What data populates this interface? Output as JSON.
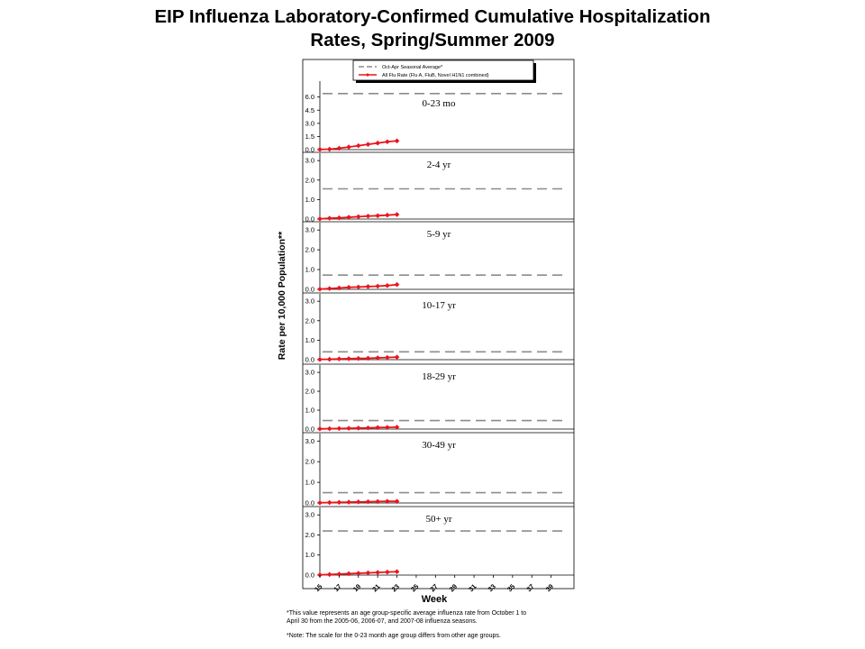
{
  "title_line1": "EIP Influenza Laboratory-Confirmed Cumulative Hospitalization",
  "title_line2": "Rates, Spring/Summer 2009",
  "footnote1_line1": "*This value represents an age group-specific average influenza rate from October 1 to",
  "footnote1_line2": "April 30 from the 2005-06, 2006-07, and 2007-08 influenza seasons.",
  "footnote2": "*Note: The scale for the 0-23 month age group differs from other age groups.",
  "colors": {
    "flu_rate": "#e8161d",
    "seasonal_avg": "#8c8c8c",
    "axis": "#000000"
  },
  "chart_data": {
    "type": "line",
    "xlabel": "Week",
    "ylabel": "Rate per 10,000 Population**",
    "x_ticks": [
      15,
      17,
      19,
      21,
      23,
      25,
      27,
      29,
      31,
      33,
      35,
      37,
      39
    ],
    "xlim": [
      15,
      41
    ],
    "legend": {
      "placement": "top",
      "entries": [
        "Oct-Apr Seasonal Average*",
        "All Flu Rate (Flu A, FluB, Novel H1N1 combined)"
      ]
    },
    "weeks": [
      15,
      16,
      17,
      18,
      19,
      20,
      21,
      22,
      23
    ],
    "panels": [
      {
        "label": "0-23 mo",
        "ylim": [
          0,
          7.2
        ],
        "y_ticks": [
          "0.0",
          "1.5",
          "3.0",
          "4.5",
          "6.0"
        ],
        "seasonal_average": 6.4,
        "values": [
          0.02,
          0.05,
          0.15,
          0.3,
          0.45,
          0.6,
          0.75,
          0.9,
          1.0
        ]
      },
      {
        "label": "2-4 yr",
        "ylim": [
          0,
          3.1
        ],
        "y_ticks": [
          "0.0",
          "1.0",
          "2.0",
          "3.0"
        ],
        "seasonal_average": 1.55,
        "values": [
          0.01,
          0.04,
          0.06,
          0.09,
          0.12,
          0.15,
          0.17,
          0.2,
          0.23
        ]
      },
      {
        "label": "5-9 yr",
        "ylim": [
          0,
          3.1
        ],
        "y_ticks": [
          "0.0",
          "1.0",
          "2.0",
          "3.0"
        ],
        "seasonal_average": 0.72,
        "values": [
          0.01,
          0.04,
          0.07,
          0.1,
          0.12,
          0.14,
          0.16,
          0.19,
          0.24
        ]
      },
      {
        "label": "10-17 yr",
        "ylim": [
          0,
          3.1
        ],
        "y_ticks": [
          "0.0",
          "1.0",
          "2.0",
          "3.0"
        ],
        "seasonal_average": 0.4,
        "values": [
          0.01,
          0.02,
          0.04,
          0.05,
          0.06,
          0.07,
          0.09,
          0.11,
          0.13
        ]
      },
      {
        "label": "18-29 yr",
        "ylim": [
          0,
          3.1
        ],
        "y_ticks": [
          "0.0",
          "1.0",
          "2.0",
          "3.0"
        ],
        "seasonal_average": 0.45,
        "values": [
          0.01,
          0.02,
          0.03,
          0.04,
          0.05,
          0.06,
          0.08,
          0.09,
          0.1
        ]
      },
      {
        "label": "30-49 yr",
        "ylim": [
          0,
          3.1
        ],
        "y_ticks": [
          "0.0",
          "1.0",
          "2.0",
          "3.0"
        ],
        "seasonal_average": 0.5,
        "values": [
          0.01,
          0.02,
          0.03,
          0.04,
          0.05,
          0.06,
          0.07,
          0.08,
          0.08
        ]
      },
      {
        "label": "50+ yr",
        "ylim": [
          0,
          3.1
        ],
        "y_ticks": [
          "0.0",
          "1.0",
          "2.0",
          "3.0"
        ],
        "seasonal_average": 2.2,
        "values": [
          0.01,
          0.03,
          0.05,
          0.07,
          0.09,
          0.11,
          0.13,
          0.15,
          0.17
        ]
      }
    ]
  }
}
